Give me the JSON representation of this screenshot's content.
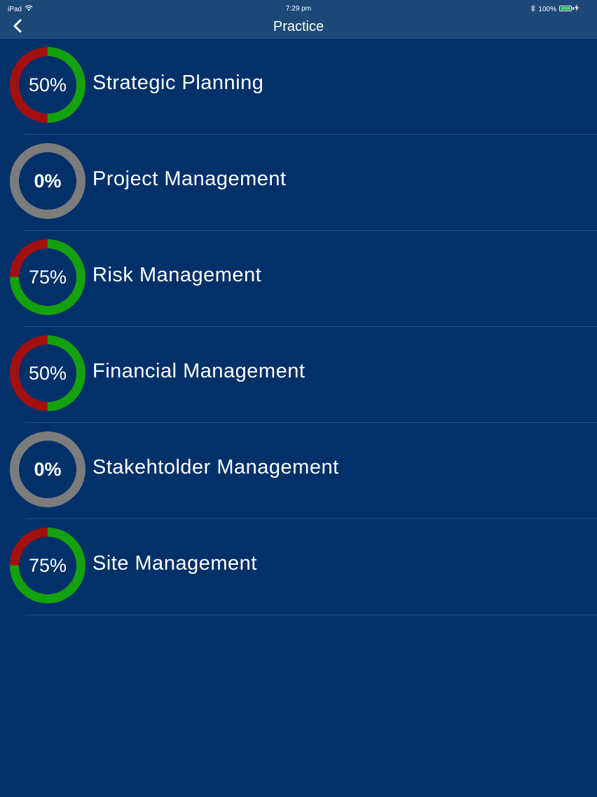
{
  "status_bar": {
    "device": "iPad",
    "time": "7:29 pm",
    "battery_text": "100%",
    "wifi_icon": "wifi-icon",
    "bluetooth_icon": "bluetooth-icon",
    "battery_icon": "battery-icon"
  },
  "nav": {
    "title": "Practice",
    "back_icon": "chevron-left-icon"
  },
  "colors": {
    "background": "#02316a",
    "bar": "#1c4978",
    "correct": "#13a10e",
    "incorrect": "#a50f0f",
    "empty": "#7c7c7c"
  },
  "items": [
    {
      "label": "Strategic Planning",
      "progress_text": "50%",
      "progress": 50
    },
    {
      "label": "Project Management",
      "progress_text": "0%",
      "progress": 0
    },
    {
      "label": "Risk Management",
      "progress_text": "75%",
      "progress": 75
    },
    {
      "label": "Financial Management",
      "progress_text": "50%",
      "progress": 50
    },
    {
      "label": "Stakehtolder Management",
      "progress_text": "0%",
      "progress": 0
    },
    {
      "label": "Site Management",
      "progress_text": "75%",
      "progress": 75
    }
  ]
}
